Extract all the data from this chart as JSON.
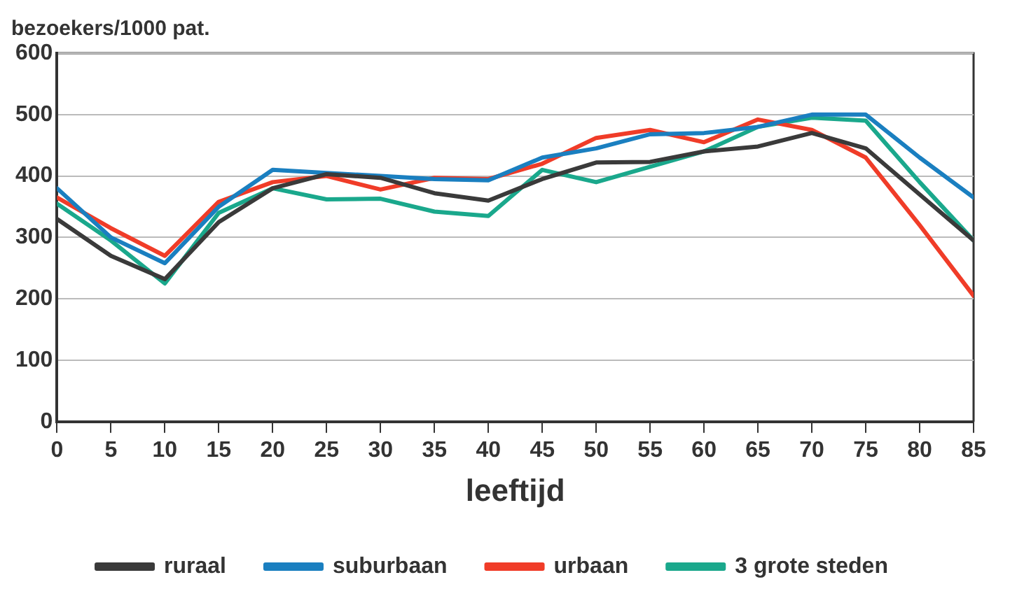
{
  "chart_data": {
    "type": "line",
    "ylabel": "bezoekers/1000 pat.",
    "xlabel": "leeftijd",
    "x": [
      0,
      5,
      10,
      15,
      20,
      25,
      30,
      35,
      40,
      45,
      50,
      55,
      60,
      65,
      70,
      75,
      80,
      85
    ],
    "series": [
      {
        "name": "ruraal",
        "color": "#3a3a3a",
        "values": [
          330,
          270,
          232,
          325,
          380,
          403,
          397,
          372,
          360,
          395,
          422,
          423,
          440,
          448,
          470,
          445,
          370,
          295
        ]
      },
      {
        "name": "suburbaan",
        "color": "#1a7fc0",
        "values": [
          380,
          300,
          258,
          350,
          410,
          405,
          400,
          395,
          393,
          430,
          445,
          468,
          470,
          480,
          500,
          500,
          430,
          365
        ]
      },
      {
        "name": "urbaan",
        "color": "#f03c28",
        "values": [
          365,
          315,
          270,
          358,
          390,
          400,
          378,
          397,
          395,
          420,
          462,
          475,
          455,
          492,
          475,
          430,
          320,
          205
        ]
      },
      {
        "name": "3 grote steden",
        "color": "#1aa88c",
        "values": [
          355,
          295,
          225,
          340,
          380,
          362,
          363,
          342,
          335,
          410,
          390,
          415,
          440,
          480,
          495,
          490,
          390,
          295
        ]
      }
    ],
    "xlim": [
      0,
      85
    ],
    "xticks": [
      0,
      5,
      10,
      15,
      20,
      25,
      30,
      35,
      40,
      45,
      50,
      55,
      60,
      65,
      70,
      75,
      80,
      85
    ],
    "ylim": [
      0,
      600
    ],
    "yticks": [
      0,
      100,
      200,
      300,
      400,
      500,
      600
    ],
    "grid": "y",
    "legend": "bottom",
    "marker": "none",
    "line_style": "solid"
  }
}
